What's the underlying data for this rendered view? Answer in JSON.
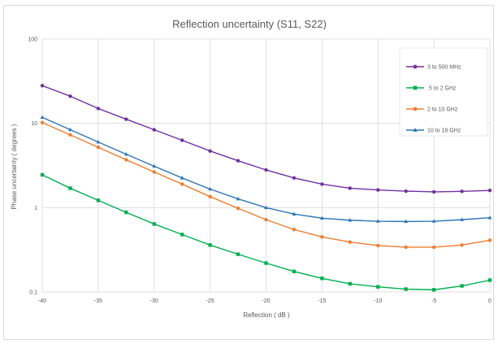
{
  "chart_data": {
    "type": "line",
    "title": "Reflection uncertainty (S11, S22)",
    "xlabel": "Reflection ( dB )",
    "ylabel": "Phase uncertainty ( degrees )",
    "xlim": [
      -40,
      0
    ],
    "ylim": [
      0.1,
      100
    ],
    "yscale": "log",
    "x_ticks": [
      "-40",
      "-35",
      "-30",
      "-25",
      "-20",
      "-15",
      "-10",
      "-5",
      "0"
    ],
    "y_ticks": [
      "0.1",
      "1",
      "10",
      "100"
    ],
    "grid": true,
    "legend_position": "top-right",
    "x": [
      -40,
      -37.5,
      -35,
      -32.5,
      -30,
      -27.5,
      -25,
      -22.5,
      -20,
      -17.5,
      -15,
      -12.5,
      -10,
      -7.5,
      -5,
      -2.5,
      0
    ],
    "series": [
      {
        "name": "3 to 500 MHz",
        "color": "#7030a0",
        "marker": "circle",
        "values": [
          28,
          21,
          15,
          11.2,
          8.4,
          6.3,
          4.7,
          3.6,
          2.8,
          2.25,
          1.9,
          1.7,
          1.62,
          1.57,
          1.54,
          1.56,
          1.6
        ]
      },
      {
        "name": ".5 to 2 GHz",
        "color": "#00b050",
        "marker": "square",
        "values": [
          2.45,
          1.7,
          1.22,
          0.88,
          0.64,
          0.48,
          0.36,
          0.28,
          0.22,
          0.175,
          0.145,
          0.125,
          0.115,
          0.108,
          0.106,
          0.118,
          0.138
        ]
      },
      {
        "name": "2 to 10 GHz",
        "color": "#ed7d31",
        "marker": "circle",
        "values": [
          10.2,
          7.3,
          5.2,
          3.7,
          2.65,
          1.9,
          1.35,
          0.98,
          0.72,
          0.55,
          0.45,
          0.39,
          0.355,
          0.34,
          0.34,
          0.36,
          0.41
        ]
      },
      {
        "name": "10 to 18 GHz",
        "color": "#2e75b6",
        "marker": "triangle",
        "values": [
          11.8,
          8.4,
          6.0,
          4.3,
          3.1,
          2.25,
          1.66,
          1.27,
          1.0,
          0.84,
          0.75,
          0.71,
          0.69,
          0.685,
          0.69,
          0.72,
          0.76
        ]
      }
    ]
  }
}
